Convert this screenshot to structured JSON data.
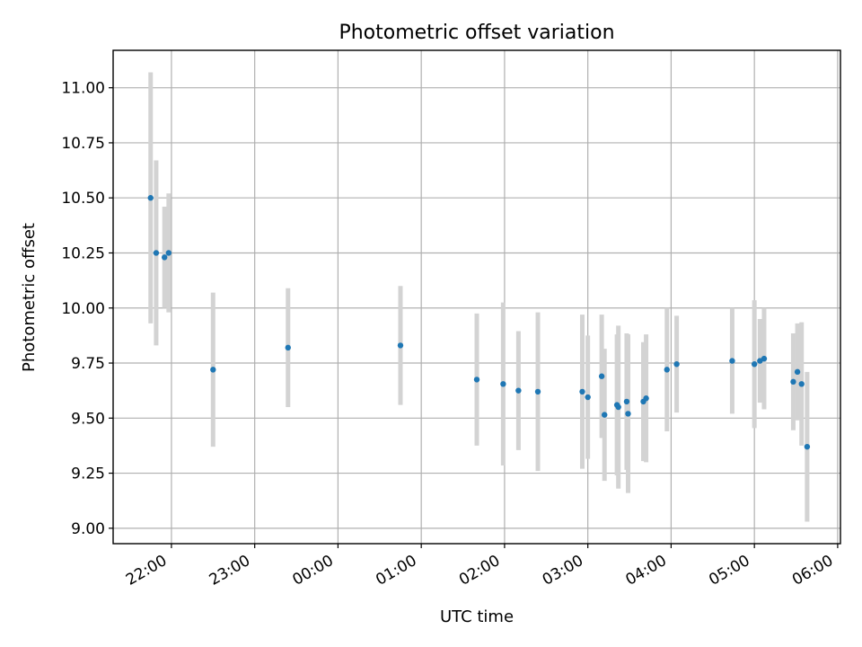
{
  "chart_data": {
    "type": "scatter",
    "title": "Photometric offset variation",
    "xlabel": "UTC time",
    "ylabel": "Photometric offset",
    "x_axis_kind": "time",
    "xlim": [
      "21:18",
      "06:02"
    ],
    "ylim": [
      8.93,
      11.17
    ],
    "x_ticks": [
      "22:00",
      "23:00",
      "00:00",
      "01:00",
      "02:00",
      "03:00",
      "04:00",
      "05:00",
      "06:00"
    ],
    "y_ticks": [
      "9.00",
      "9.25",
      "9.50",
      "9.75",
      "10.00",
      "10.25",
      "10.50",
      "10.75",
      "11.00"
    ],
    "grid": true,
    "colors": {
      "points": "#1f77b4",
      "errorbars": "#d3d3d3",
      "grid": "#b0b0b0"
    },
    "points": [
      {
        "x": "21:45",
        "y": 10.5,
        "err": 0.57
      },
      {
        "x": "21:49",
        "y": 10.25,
        "err": 0.42
      },
      {
        "x": "21:55",
        "y": 10.23,
        "err": 0.23
      },
      {
        "x": "21:58",
        "y": 10.25,
        "err": 0.27
      },
      {
        "x": "22:30",
        "y": 9.72,
        "err": 0.35
      },
      {
        "x": "23:24",
        "y": 9.82,
        "err": 0.27
      },
      {
        "x": "00:45",
        "y": 9.83,
        "err": 0.27
      },
      {
        "x": "01:40",
        "y": 9.675,
        "err": 0.3
      },
      {
        "x": "01:59",
        "y": 9.655,
        "err": 0.37
      },
      {
        "x": "02:10",
        "y": 9.625,
        "err": 0.27
      },
      {
        "x": "02:24",
        "y": 9.62,
        "err": 0.36
      },
      {
        "x": "02:56",
        "y": 9.62,
        "err": 0.35
      },
      {
        "x": "03:00",
        "y": 9.595,
        "err": 0.28
      },
      {
        "x": "03:10",
        "y": 9.69,
        "err": 0.28
      },
      {
        "x": "03:12",
        "y": 9.515,
        "err": 0.3
      },
      {
        "x": "03:21",
        "y": 9.56,
        "err": 0.32
      },
      {
        "x": "03:22",
        "y": 9.55,
        "err": 0.37
      },
      {
        "x": "03:28",
        "y": 9.575,
        "err": 0.31
      },
      {
        "x": "03:29",
        "y": 9.52,
        "err": 0.36
      },
      {
        "x": "03:40",
        "y": 9.575,
        "err": 0.27
      },
      {
        "x": "03:42",
        "y": 9.59,
        "err": 0.29
      },
      {
        "x": "03:57",
        "y": 9.72,
        "err": 0.28
      },
      {
        "x": "04:04",
        "y": 9.745,
        "err": 0.22
      },
      {
        "x": "04:44",
        "y": 9.76,
        "err": 0.24
      },
      {
        "x": "05:00",
        "y": 9.745,
        "err": 0.29
      },
      {
        "x": "05:04",
        "y": 9.76,
        "err": 0.19
      },
      {
        "x": "05:07",
        "y": 9.77,
        "err": 0.23
      },
      {
        "x": "05:28",
        "y": 9.665,
        "err": 0.22
      },
      {
        "x": "05:31",
        "y": 9.71,
        "err": 0.22
      },
      {
        "x": "05:34",
        "y": 9.655,
        "err": 0.28
      },
      {
        "x": "05:38",
        "y": 9.37,
        "err": 0.34
      }
    ]
  }
}
